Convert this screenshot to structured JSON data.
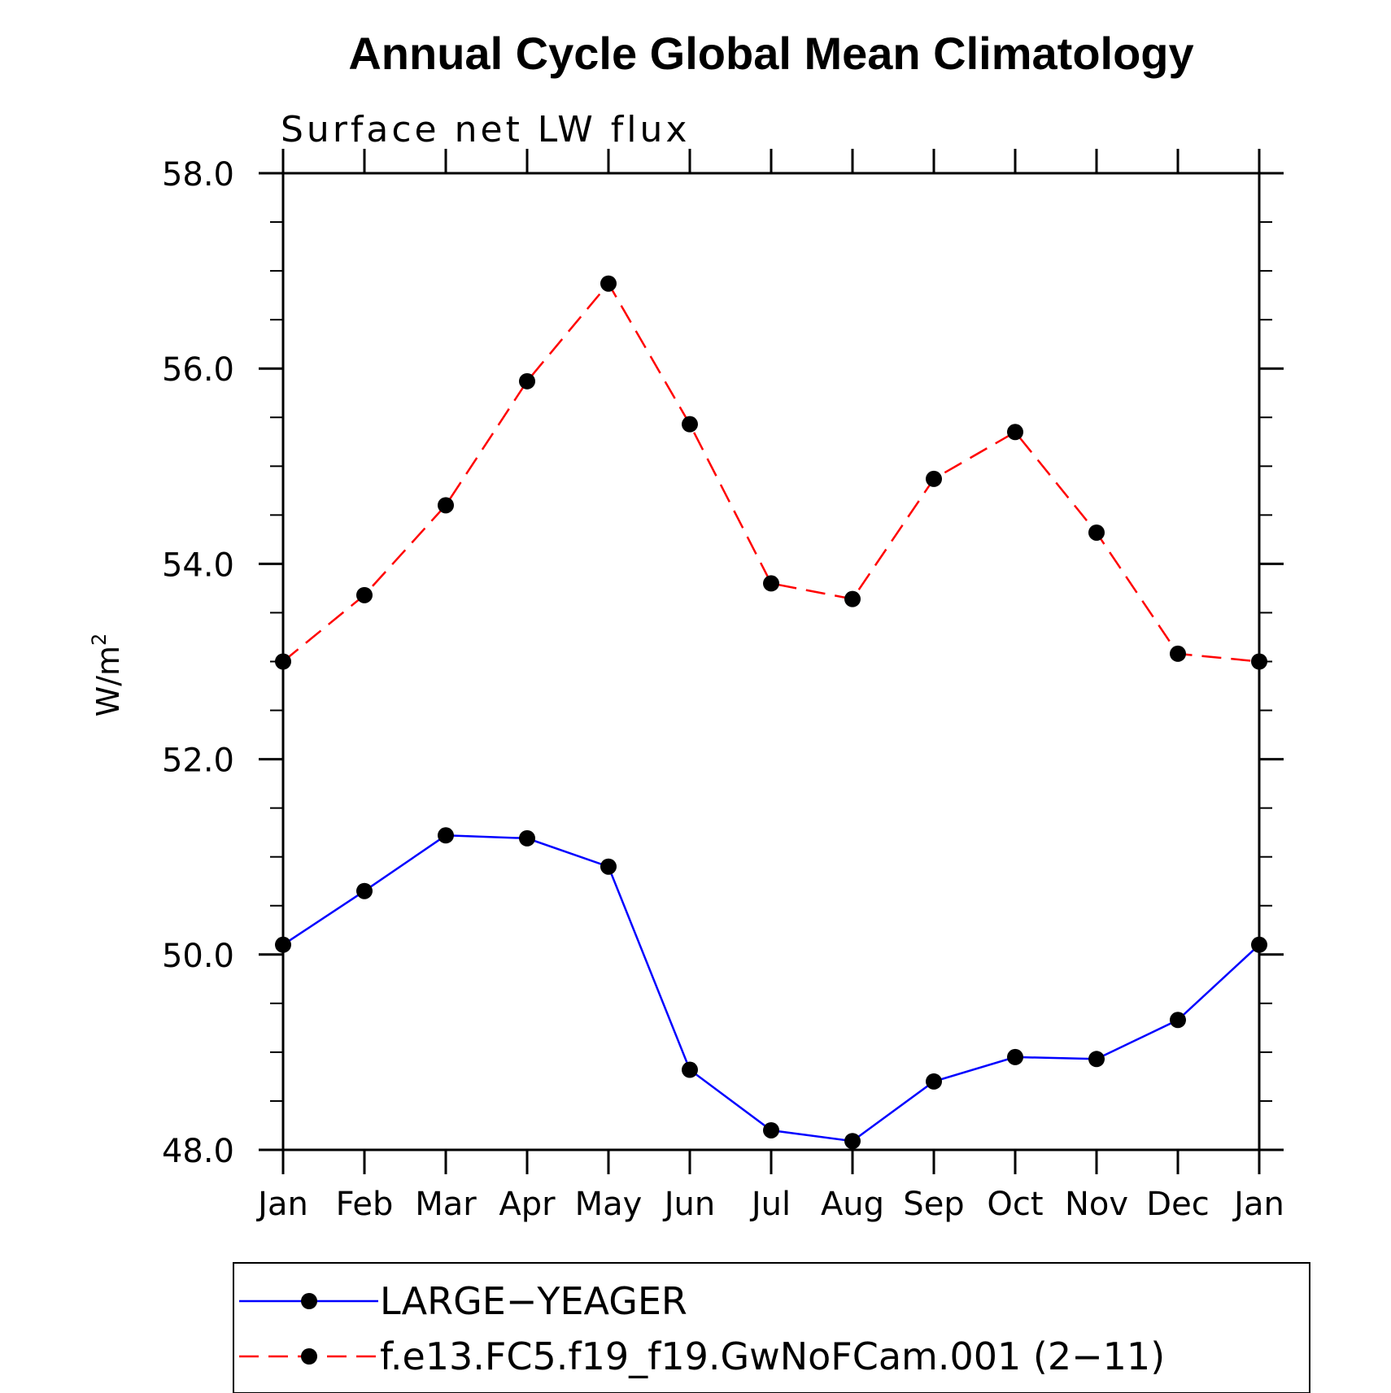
{
  "chart_data": {
    "type": "line",
    "title": "Annual Cycle Global Mean Climatology",
    "subtitle": "Surface net LW flux",
    "ylabel": "W/m",
    "ylabel_superscript": "2",
    "xlabel": "",
    "categories": [
      "Jan",
      "Feb",
      "Mar",
      "Apr",
      "May",
      "Jun",
      "Jul",
      "Aug",
      "Sep",
      "Oct",
      "Nov",
      "Dec",
      "Jan"
    ],
    "ylim": [
      48.0,
      58.0
    ],
    "yticks": [
      "48.0",
      "50.0",
      "52.0",
      "54.0",
      "56.0",
      "58.0"
    ],
    "grid": false,
    "legend_position": "bottom",
    "series": [
      {
        "name": "LARGE−YEAGER",
        "color": "#0000ff",
        "dash": "solid",
        "marker": "filled-circle",
        "values": [
          50.1,
          50.65,
          51.22,
          51.19,
          50.9,
          48.82,
          48.2,
          48.09,
          48.7,
          48.95,
          48.93,
          49.33,
          50.1
        ]
      },
      {
        "name": "f.e13.FC5.f19_f19.GwNoFCam.001 (2−11)",
        "color": "#ff0000",
        "dash": "dashed",
        "marker": "filled-circle",
        "values": [
          53.0,
          53.68,
          54.6,
          55.87,
          56.87,
          55.43,
          53.8,
          53.64,
          54.87,
          55.35,
          54.32,
          53.08,
          53.0
        ]
      }
    ]
  }
}
